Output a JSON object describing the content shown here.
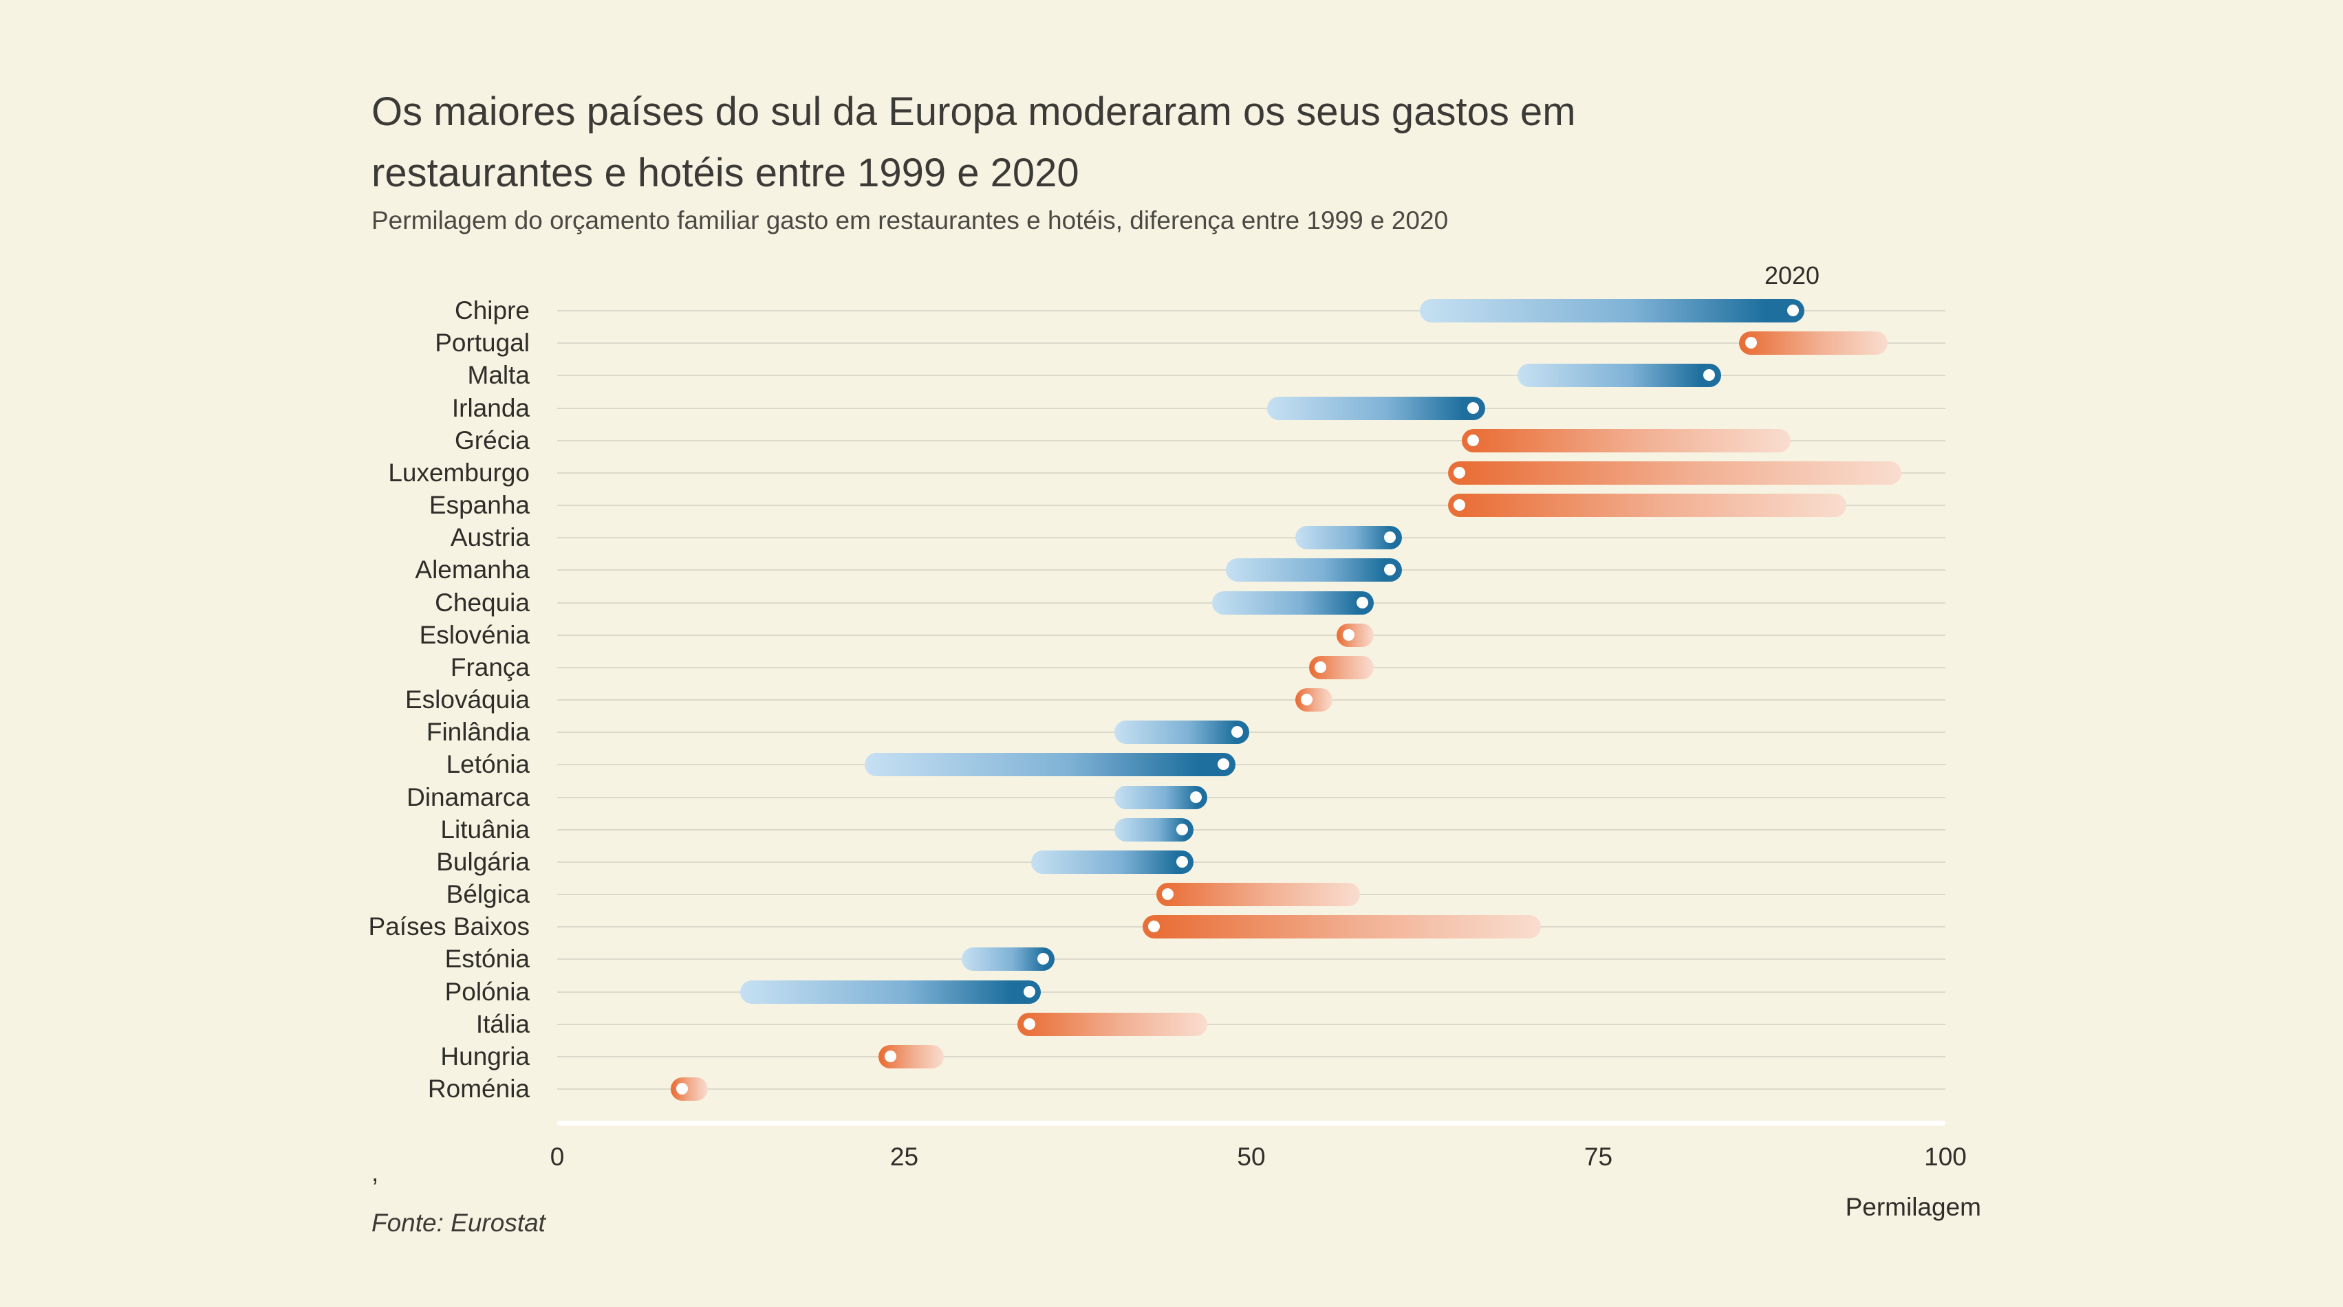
{
  "header": {
    "title_line1": "Os maiores países do sul da Europa moderaram os seus gastos em",
    "title_line2": "restaurantes e hotéis entre 1999 e 2020",
    "subtitle": "Permilagem do orçamento familiar gasto em restaurantes e hotéis, diferença entre 1999 e 2020"
  },
  "annotation_2020": "2020",
  "axis": {
    "unit_label": "Permilagem"
  },
  "footer": {
    "comma": ",",
    "source": "Fonte: Eurostat"
  },
  "colors": {
    "background": "#f7f3e2",
    "text": "#3b3a36",
    "gridline": "#dcd8cb",
    "axis_line": "#ffffff",
    "blue_dark": "#1e6f9e",
    "blue_mid": "#7fb2d6",
    "blue_light": "#c6e0f2",
    "orange_dark": "#e96f38",
    "orange_mid": "#f2b093",
    "orange_light": "#f9ddcf",
    "dot": "#ffffff"
  },
  "chart_data": {
    "type": "dumbbell",
    "title": "Os maiores países do sul da Europa moderaram os seus gastos em restaurantes e hotéis entre 1999 e 2020",
    "subtitle": "Permilagem do orçamento familiar gasto em restaurantes e hotéis, diferença entre 1999 e 2020",
    "xlabel": "Permilagem",
    "xlim": [
      0,
      100
    ],
    "x_ticks": [
      0,
      25,
      50,
      75,
      100
    ],
    "grid": true,
    "legend_note": "white dot marks the 2020 value; comet tail fades toward the 1999 value; blue = increase, orange = decrease",
    "categories": [
      "Chipre",
      "Portugal",
      "Malta",
      "Irlanda",
      "Grécia",
      "Luxemburgo",
      "Espanha",
      "Austria",
      "Alemanha",
      "Chequia",
      "Eslovénia",
      "França",
      "Eslováquia",
      "Finlândia",
      "Letónia",
      "Dinamarca",
      "Lituânia",
      "Bulgária",
      "Bélgica",
      "Países Baixos",
      "Estónia",
      "Polónia",
      "Itália",
      "Hungria",
      "Roménia"
    ],
    "series": [
      {
        "name": "1999",
        "values": [
          63,
          95,
          70,
          52,
          88,
          96,
          92,
          54,
          49,
          48,
          58,
          58,
          55,
          41,
          23,
          41,
          41,
          35,
          57,
          70,
          30,
          14,
          46,
          27,
          10
        ]
      },
      {
        "name": "2020",
        "values": [
          89,
          86,
          83,
          66,
          66,
          65,
          65,
          60,
          60,
          58,
          57,
          55,
          54,
          49,
          48,
          46,
          45,
          45,
          44,
          43,
          35,
          34,
          34,
          24,
          9
        ]
      }
    ]
  }
}
